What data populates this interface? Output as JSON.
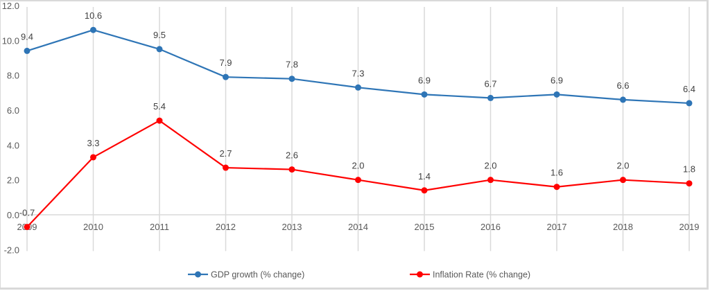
{
  "chart_data": {
    "type": "line",
    "title": "",
    "xlabel": "",
    "ylabel": "",
    "x": [
      "2009",
      "2010",
      "2011",
      "2012",
      "2013",
      "2014",
      "2015",
      "2016",
      "2017",
      "2018",
      "2019"
    ],
    "ylim": [
      -2.0,
      12.0
    ],
    "yticks": [
      "-2.0",
      "0.0",
      "2.0",
      "4.0",
      "6.0",
      "8.0",
      "10.0",
      "12.0"
    ],
    "ytick_values": [
      -2,
      0,
      2,
      4,
      6,
      8,
      10,
      12
    ],
    "grid": "vertical",
    "legend_position": "bottom",
    "series": [
      {
        "name": "GDP growth (% change)",
        "color": "#2e75b6",
        "values": [
          9.4,
          10.6,
          9.5,
          7.9,
          7.8,
          7.3,
          6.9,
          6.7,
          6.9,
          6.6,
          6.4
        ],
        "labels": [
          "9.4",
          "10.6",
          "9.5",
          "7.9",
          "7.8",
          "7.3",
          "6.9",
          "6.7",
          "6.9",
          "6.6",
          "6.4"
        ]
      },
      {
        "name": "Inflation Rate (% change)",
        "color": "#ff0000",
        "values": [
          -0.7,
          3.3,
          5.4,
          2.7,
          2.6,
          2.0,
          1.4,
          2.0,
          1.6,
          2.0,
          1.8
        ],
        "labels": [
          "-0.7",
          "3.3",
          "5.4",
          "2.7",
          "2.6",
          "2.0",
          "1.4",
          "2.0",
          "1.6",
          "2.0",
          "1.8"
        ]
      }
    ]
  }
}
